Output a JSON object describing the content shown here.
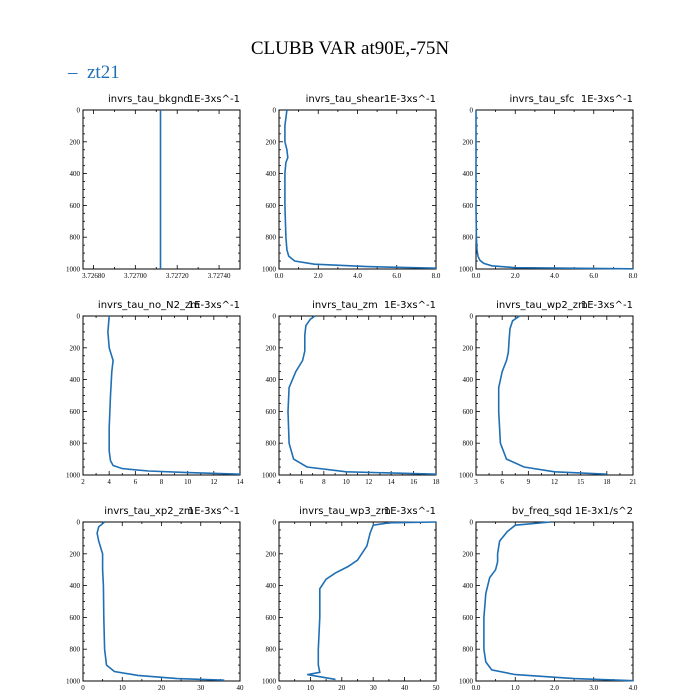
{
  "title": "CLUBB VAR at90E,-75N",
  "legend": {
    "marker": "–",
    "label": "zt21",
    "color": "#1f6fb4"
  },
  "chart_data": [
    {
      "type": "line",
      "title": "invrs_tau_bkgnd",
      "units": "1E-3xs^-1",
      "xlim": [
        3.72675,
        3.7275
      ],
      "ylim": [
        0,
        1000
      ],
      "y_inverted": true,
      "xticks": [
        "3.72680",
        "3.72700",
        "3.72720",
        "3.72740"
      ],
      "xtick_values": [
        3.7268,
        3.727,
        3.7272,
        3.7274
      ],
      "yticks": [
        "0",
        "200",
        "400",
        "600",
        "800",
        "1000"
      ],
      "ytick_values": [
        0,
        200,
        400,
        600,
        800,
        1000
      ],
      "series": [
        {
          "x": [
            3.72712,
            3.72712
          ],
          "y": [
            0,
            1000
          ]
        }
      ]
    },
    {
      "type": "line",
      "title": "invrs_tau_shear",
      "units": "1E-3xs^-1",
      "xlim": [
        0,
        8
      ],
      "ylim": [
        0,
        1000
      ],
      "y_inverted": true,
      "xticks": [
        "0.0",
        "2.0",
        "4.0",
        "6.0",
        "8.0"
      ],
      "xtick_values": [
        0,
        2,
        4,
        6,
        8
      ],
      "yticks": [
        "0",
        "200",
        "400",
        "600",
        "800",
        "1000"
      ],
      "ytick_values": [
        0,
        200,
        400,
        600,
        800,
        1000
      ],
      "series": [
        {
          "x": [
            0.4,
            0.35,
            0.3,
            0.3,
            0.4,
            0.45,
            0.35,
            0.3,
            0.3,
            0.35,
            0.4,
            0.5,
            0.8,
            1.8,
            4.5,
            8.0
          ],
          "y": [
            0,
            50,
            100,
            200,
            250,
            300,
            330,
            400,
            600,
            800,
            880,
            920,
            950,
            970,
            985,
            995
          ]
        }
      ]
    },
    {
      "type": "line",
      "title": "invrs_tau_sfc",
      "units": "1E-3xs^-1",
      "xlim": [
        0,
        8
      ],
      "ylim": [
        0,
        1000
      ],
      "y_inverted": true,
      "xticks": [
        "0.0",
        "2.0",
        "4.0",
        "6.0",
        "8.0"
      ],
      "xtick_values": [
        0,
        2,
        4,
        6,
        8
      ],
      "yticks": [
        "0",
        "200",
        "400",
        "600",
        "800",
        "1000"
      ],
      "ytick_values": [
        0,
        200,
        400,
        600,
        800,
        1000
      ],
      "series": [
        {
          "x": [
            0.0,
            0.0,
            0.02,
            0.05,
            0.1,
            0.2,
            0.4,
            0.8,
            2.0,
            8.0
          ],
          "y": [
            0,
            600,
            800,
            880,
            920,
            945,
            965,
            980,
            992,
            999
          ]
        }
      ]
    },
    {
      "type": "line",
      "title": "invrs_tau_no_N2_zm",
      "units": "1E-3xs^-1",
      "xlim": [
        2,
        14
      ],
      "ylim": [
        0,
        1000
      ],
      "y_inverted": true,
      "xticks": [
        "2",
        "4",
        "6",
        "8",
        "10",
        "12",
        "14"
      ],
      "xtick_values": [
        2,
        4,
        6,
        8,
        10,
        12,
        14
      ],
      "yticks": [
        "0",
        "200",
        "400",
        "600",
        "800",
        "1000"
      ],
      "ytick_values": [
        0,
        200,
        400,
        600,
        800,
        1000
      ],
      "series": [
        {
          "x": [
            4.0,
            3.9,
            4.0,
            4.3,
            4.2,
            4.1,
            4.0,
            4.0,
            4.1,
            4.3,
            5.0,
            7.0,
            10.0,
            14.0
          ],
          "y": [
            0,
            100,
            200,
            280,
            350,
            500,
            700,
            850,
            910,
            940,
            960,
            975,
            985,
            995
          ]
        }
      ]
    },
    {
      "type": "line",
      "title": "invrs_tau_zm",
      "units": "1E-3xs^-1",
      "xlim": [
        4,
        18
      ],
      "ylim": [
        0,
        1000
      ],
      "y_inverted": true,
      "xticks": [
        "4",
        "6",
        "8",
        "10",
        "12",
        "14",
        "16",
        "18"
      ],
      "xtick_values": [
        4,
        6,
        8,
        10,
        12,
        14,
        16,
        18
      ],
      "yticks": [
        "0",
        "200",
        "400",
        "600",
        "800",
        "1000"
      ],
      "ytick_values": [
        0,
        200,
        400,
        600,
        800,
        1000
      ],
      "series": [
        {
          "x": [
            7.2,
            6.8,
            6.4,
            6.3,
            6.3,
            6.1,
            5.5,
            4.9,
            4.8,
            4.9,
            5.3,
            6.5,
            10.0,
            18.0
          ],
          "y": [
            0,
            20,
            60,
            120,
            220,
            280,
            350,
            450,
            600,
            800,
            900,
            950,
            980,
            995
          ]
        }
      ]
    },
    {
      "type": "line",
      "title": "invrs_tau_wp2_zm",
      "units": "1E-3xs^-1",
      "xlim": [
        3,
        21
      ],
      "ylim": [
        0,
        1000
      ],
      "y_inverted": true,
      "xticks": [
        "3",
        "6",
        "9",
        "12",
        "15",
        "18",
        "21"
      ],
      "xtick_values": [
        3,
        6,
        9,
        12,
        15,
        18,
        21
      ],
      "yticks": [
        "0",
        "200",
        "400",
        "600",
        "800",
        "1000"
      ],
      "ytick_values": [
        0,
        200,
        400,
        600,
        800,
        1000
      ],
      "series": [
        {
          "x": [
            8.0,
            7.2,
            6.9,
            6.8,
            6.7,
            6.5,
            6.0,
            5.6,
            5.6,
            5.8,
            6.5,
            8.5,
            12.0,
            18.0
          ],
          "y": [
            0,
            30,
            80,
            150,
            230,
            280,
            350,
            450,
            600,
            800,
            900,
            950,
            980,
            995
          ]
        }
      ]
    },
    {
      "type": "line",
      "title": "invrs_tau_xp2_zm",
      "units": "1E-3xs^-1",
      "xlim": [
        0,
        40
      ],
      "ylim": [
        0,
        1000
      ],
      "y_inverted": true,
      "xticks": [
        "0",
        "10",
        "20",
        "30",
        "40"
      ],
      "xtick_values": [
        0,
        10,
        20,
        30,
        40
      ],
      "yticks": [
        "0",
        "200",
        "400",
        "600",
        "800",
        "1000"
      ],
      "ytick_values": [
        0,
        200,
        400,
        600,
        800,
        1000
      ],
      "series": [
        {
          "x": [
            5.5,
            4.0,
            3.6,
            4.0,
            5.0,
            5.0,
            5.2,
            5.3,
            5.5,
            6.0,
            8.0,
            14.0,
            24.0,
            36.0
          ],
          "y": [
            0,
            30,
            70,
            120,
            200,
            300,
            400,
            600,
            800,
            900,
            940,
            965,
            985,
            995
          ]
        }
      ]
    },
    {
      "type": "line",
      "title": "invrs_tau_wp3_zm",
      "units": "1E-3xs^-1",
      "xlim": [
        0,
        50
      ],
      "ylim": [
        0,
        1000
      ],
      "y_inverted": true,
      "xticks": [
        "0",
        "10",
        "20",
        "30",
        "40",
        "50"
      ],
      "xtick_values": [
        0,
        10,
        20,
        30,
        40,
        50
      ],
      "yticks": [
        "0",
        "200",
        "400",
        "600",
        "800",
        "1000"
      ],
      "ytick_values": [
        0,
        200,
        400,
        600,
        800,
        1000
      ],
      "series": [
        {
          "x": [
            50,
            35,
            30,
            29,
            28,
            25,
            22,
            18,
            15,
            13,
            13,
            12.5,
            12.5,
            13,
            9,
            18
          ],
          "y": [
            0,
            5,
            20,
            70,
            150,
            240,
            280,
            320,
            360,
            420,
            600,
            800,
            900,
            945,
            960,
            990
          ]
        }
      ]
    },
    {
      "type": "line",
      "title": "bv_freq_sqd",
      "units": "1E-3x1/s^2",
      "xlim": [
        0,
        4
      ],
      "ylim": [
        0,
        1000
      ],
      "y_inverted": true,
      "xticks": [
        "0.0",
        "1.0",
        "2.0",
        "3.0",
        "4.0"
      ],
      "xtick_values": [
        0,
        1,
        2,
        3,
        4
      ],
      "yticks": [
        "0",
        "200",
        "400",
        "600",
        "800",
        "1000"
      ],
      "ytick_values": [
        0,
        200,
        400,
        600,
        800,
        1000
      ],
      "series": [
        {
          "x": [
            1.9,
            1.0,
            0.8,
            0.6,
            0.55,
            0.55,
            0.5,
            0.35,
            0.25,
            0.2,
            0.2,
            0.25,
            0.4,
            1.0,
            2.5,
            4.0
          ],
          "y": [
            0,
            20,
            60,
            120,
            200,
            250,
            300,
            350,
            450,
            600,
            800,
            880,
            930,
            960,
            985,
            998
          ]
        }
      ]
    }
  ]
}
